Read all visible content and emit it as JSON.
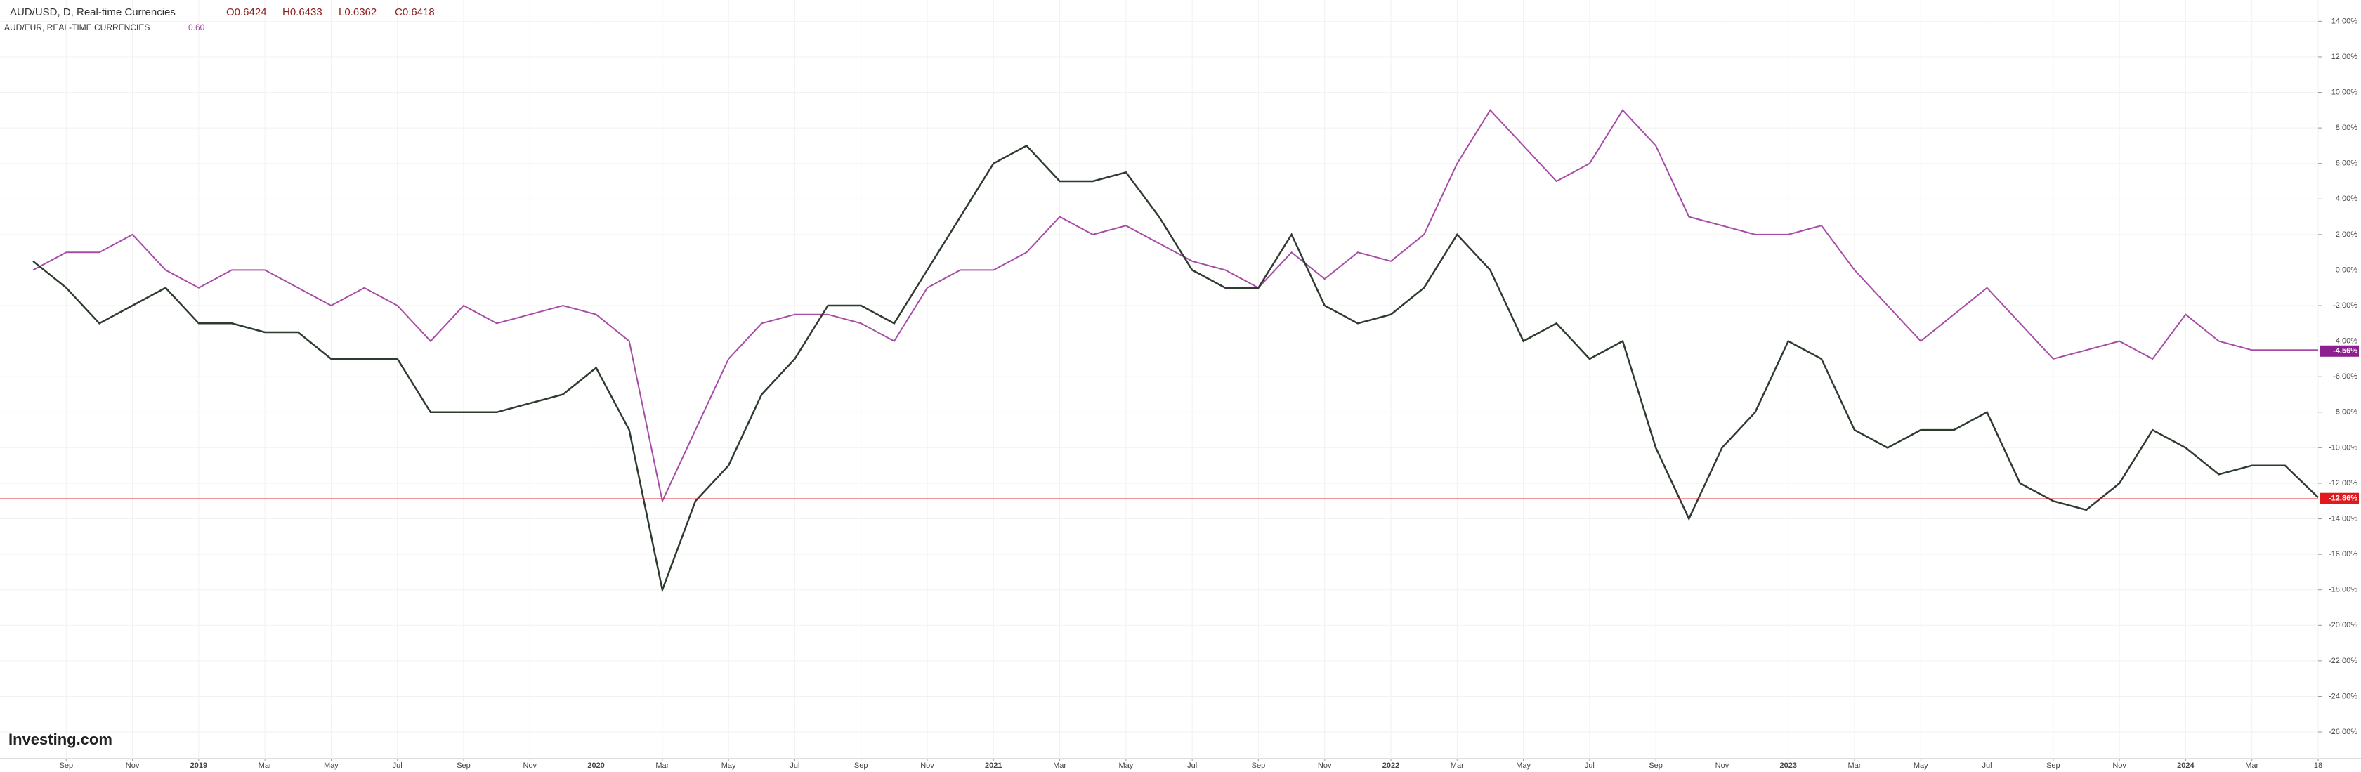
{
  "chart_data": {
    "type": "line",
    "title": "AUD/USD, D, Real-time Currencies",
    "ohlc_labels": [
      "O0.6424",
      "H0.6433",
      "L0.6362",
      "C0.6418"
    ],
    "logo": "Investing.com",
    "x": [
      "2018-08",
      "2018-09",
      "2018-10",
      "2018-11",
      "2018-12",
      "2019-01",
      "2019-02",
      "2019-03",
      "2019-04",
      "2019-05",
      "2019-06",
      "2019-07",
      "2019-08",
      "2019-09",
      "2019-10",
      "2019-11",
      "2019-12",
      "2020-01",
      "2020-02",
      "2020-03",
      "2020-04",
      "2020-05",
      "2020-06",
      "2020-07",
      "2020-08",
      "2020-09",
      "2020-10",
      "2020-11",
      "2020-12",
      "2021-01",
      "2021-02",
      "2021-03",
      "2021-04",
      "2021-05",
      "2021-06",
      "2021-07",
      "2021-08",
      "2021-09",
      "2021-10",
      "2021-11",
      "2021-12",
      "2022-01",
      "2022-02",
      "2022-03",
      "2022-04",
      "2022-05",
      "2022-06",
      "2022-07",
      "2022-08",
      "2022-09",
      "2022-10",
      "2022-11",
      "2022-12",
      "2023-01",
      "2023-02",
      "2023-03",
      "2023-04",
      "2023-05",
      "2023-06",
      "2023-07",
      "2023-08",
      "2023-09",
      "2023-10",
      "2023-11",
      "2023-12",
      "2024-01",
      "2024-02",
      "2024-03",
      "2024-04",
      "2024-05"
    ],
    "series": [
      {
        "name": "AUD/USD",
        "color": "#2e3b2e",
        "values": [
          0.5,
          -1,
          -3,
          -2,
          -1,
          -3,
          -3,
          -3.5,
          -3.5,
          -5,
          -5,
          -5,
          -8,
          -8,
          -8,
          -7.5,
          -7,
          -5.5,
          -9,
          -18,
          -13,
          -11,
          -7,
          -5,
          -2,
          -2,
          -3,
          0,
          3,
          6,
          7,
          5,
          5,
          5.5,
          3,
          0,
          -1,
          -1,
          2,
          -2,
          -3,
          -2.5,
          -1,
          2,
          0,
          -4,
          -3,
          -5,
          -4,
          -10,
          -14,
          -10,
          -8,
          -4,
          -5,
          -9,
          -10,
          -9,
          -9,
          -8,
          -12,
          -13,
          -13.5,
          -12,
          -9,
          -10,
          -11.5,
          -11,
          -11,
          -12.8
        ],
        "last_label": {
          "value": -12.86,
          "label": "-12.86%"
        },
        "last_color": "#e0191f"
      },
      {
        "name": "AUD/EUR, REAL-TIME CURRENCIES",
        "color": "#a64ca6",
        "info": "0.60",
        "values": [
          0,
          1,
          1,
          2,
          0,
          -1,
          0,
          0,
          -1,
          -2,
          -1,
          -2,
          -4,
          -2,
          -3,
          -2.5,
          -2,
          -2.5,
          -4,
          -13,
          -9,
          -5,
          -3,
          -2.5,
          -2.5,
          -3,
          -4,
          -1,
          0,
          0,
          1,
          3,
          2,
          2.5,
          1.5,
          0.5,
          0,
          -1,
          1,
          -0.5,
          1,
          0.5,
          2,
          6,
          9,
          7,
          5,
          6,
          9,
          7,
          3,
          2.5,
          2,
          2,
          2.5,
          0,
          -2,
          -4,
          -2.5,
          -1,
          -3,
          -5,
          -4.5,
          -4,
          -5,
          -2.5,
          -4,
          -4.5,
          -4.5,
          -4.5
        ],
        "last_label": {
          "value": -4.56,
          "label": "-4.56%"
        },
        "last_color": "#8e1f8e"
      }
    ],
    "xlim": [
      "2018-07",
      "2024-05"
    ],
    "xticks": [
      {
        "value": "2018-09",
        "label": "Sep"
      },
      {
        "value": "2018-11",
        "label": "Nov"
      },
      {
        "value": "2019-01",
        "label": "2019"
      },
      {
        "value": "2019-03",
        "label": "Mar"
      },
      {
        "value": "2019-05",
        "label": "May"
      },
      {
        "value": "2019-07",
        "label": "Jul"
      },
      {
        "value": "2019-09",
        "label": "Sep"
      },
      {
        "value": "2019-11",
        "label": "Nov"
      },
      {
        "value": "2020-01",
        "label": "2020"
      },
      {
        "value": "2020-03",
        "label": "Mar"
      },
      {
        "value": "2020-05",
        "label": "May"
      },
      {
        "value": "2020-07",
        "label": "Jul"
      },
      {
        "value": "2020-09",
        "label": "Sep"
      },
      {
        "value": "2020-11",
        "label": "Nov"
      },
      {
        "value": "2021-01",
        "label": "2021"
      },
      {
        "value": "2021-03",
        "label": "Mar"
      },
      {
        "value": "2021-05",
        "label": "May"
      },
      {
        "value": "2021-07",
        "label": "Jul"
      },
      {
        "value": "2021-09",
        "label": "Sep"
      },
      {
        "value": "2021-11",
        "label": "Nov"
      },
      {
        "value": "2022-01",
        "label": "2022"
      },
      {
        "value": "2022-03",
        "label": "Mar"
      },
      {
        "value": "2022-05",
        "label": "May"
      },
      {
        "value": "2022-07",
        "label": "Jul"
      },
      {
        "value": "2022-09",
        "label": "Sep"
      },
      {
        "value": "2022-11",
        "label": "Nov"
      },
      {
        "value": "2023-01",
        "label": "2023"
      },
      {
        "value": "2023-03",
        "label": "Mar"
      },
      {
        "value": "2023-05",
        "label": "May"
      },
      {
        "value": "2023-07",
        "label": "Jul"
      },
      {
        "value": "2023-09",
        "label": "Sep"
      },
      {
        "value": "2023-11",
        "label": "Nov"
      },
      {
        "value": "2024-01",
        "label": "2024"
      },
      {
        "value": "2024-03",
        "label": "Mar"
      },
      {
        "value": "2024-05",
        "label": "18"
      }
    ],
    "ylim": [
      -27.5,
      15.2
    ],
    "yticks": [
      {
        "value": 14,
        "label": "14.00%"
      },
      {
        "value": 12,
        "label": "12.00%"
      },
      {
        "value": 10,
        "label": "10.00%"
      },
      {
        "value": 8,
        "label": "8.00%"
      },
      {
        "value": 6,
        "label": "6.00%"
      },
      {
        "value": 4,
        "label": "4.00%"
      },
      {
        "value": 2,
        "label": "2.00%"
      },
      {
        "value": 0,
        "label": "0.00%"
      },
      {
        "value": -2,
        "label": "-2.00%"
      },
      {
        "value": -4,
        "label": "-4.00%"
      },
      {
        "value": -6,
        "label": "-6.00%"
      },
      {
        "value": -8,
        "label": "-8.00%"
      },
      {
        "value": -10,
        "label": "-10.00%"
      },
      {
        "value": -12,
        "label": "-12.00%"
      },
      {
        "value": -14,
        "label": "-14.00%"
      },
      {
        "value": -16,
        "label": "-16.00%"
      },
      {
        "value": -18,
        "label": "-18.00%"
      },
      {
        "value": -20,
        "label": "-20.00%"
      },
      {
        "value": -22,
        "label": "-22.00%"
      },
      {
        "value": -24,
        "label": "-24.00%"
      },
      {
        "value": -26,
        "label": "-26.00%"
      }
    ],
    "grid": true
  }
}
